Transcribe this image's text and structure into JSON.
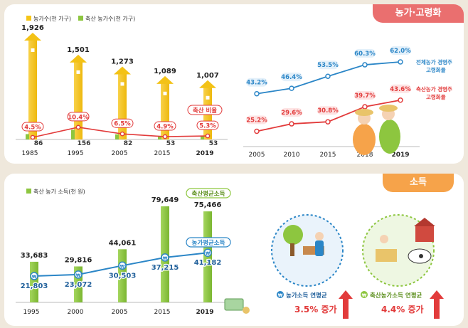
{
  "top_badge": "농가·고령화",
  "bottom_badge": "소득",
  "colors": {
    "farm_households": "#f5c518",
    "livestock_households": "#8dc63f",
    "ratio_red": "#e23b3b",
    "aging_blue": "#2b86c7",
    "aging_red": "#e23b3b",
    "income_green": "#8dc63f",
    "income_blue": "#2b86c7"
  },
  "chart_data": [
    {
      "type": "bar",
      "legend": [
        "농가수(천 가구)",
        "축산 농가수(천 가구)"
      ],
      "categories": [
        "1985",
        "1995",
        "2005",
        "2015",
        "2019"
      ],
      "series": [
        {
          "name": "농가수(천 가구)",
          "values": [
            1926,
            1501,
            1273,
            1089,
            1007
          ],
          "labels": [
            "1,926",
            "1,501",
            "1,273",
            "1,089",
            "1,007"
          ]
        },
        {
          "name": "축산 농가수(천 가구)",
          "values": [
            86,
            156,
            82,
            53,
            53
          ],
          "labels": [
            "86",
            "156",
            "82",
            "53",
            "53"
          ]
        }
      ],
      "ratio_series": {
        "name": "축산 비율",
        "values": [
          4.5,
          10.4,
          6.5,
          4.9,
          5.3
        ],
        "labels": [
          "4.5%",
          "10.4%",
          "6.5%",
          "4.9%",
          "5.3%"
        ]
      }
    },
    {
      "type": "line",
      "x": [
        "2005",
        "2010",
        "2015",
        "2018",
        "2019"
      ],
      "series": [
        {
          "name": "전체농가 경영주 고령화율",
          "values": [
            43.2,
            46.4,
            53.5,
            60.3,
            62.0
          ],
          "labels": [
            "43.2%",
            "46.4%",
            "53.5%",
            "60.3%",
            "62.0%"
          ]
        },
        {
          "name": "축산농가 경영주 고령화율",
          "values": [
            25.2,
            29.6,
            30.8,
            39.7,
            43.6
          ],
          "labels": [
            "25.2%",
            "29.6%",
            "30.8%",
            "39.7%",
            "43.6%"
          ]
        }
      ]
    },
    {
      "type": "bar",
      "legend": [
        "축산 농가 소득(천 원)"
      ],
      "categories": [
        "1995",
        "2000",
        "2005",
        "2015",
        "2019"
      ],
      "series": [
        {
          "name": "축산평균소득",
          "values": [
            33683,
            29816,
            44061,
            79649,
            75466
          ],
          "labels": [
            "33,683",
            "29,816",
            "44,061",
            "79,649",
            "75,466"
          ]
        },
        {
          "name": "농가평균소득",
          "values": [
            21803,
            23072,
            30503,
            37215,
            41182
          ],
          "labels": [
            "21,803",
            "23,072",
            "30,503",
            "37,215",
            "41,182"
          ]
        }
      ]
    }
  ],
  "labels": {
    "ratio_callout": "축산 비율",
    "aging_all_1": "전체농가 경영주",
    "aging_all_2": "고령화율",
    "aging_live_1": "축산농가 경영주",
    "aging_live_2": "고령화율",
    "income_livestock_tag": "축산평균소득",
    "income_farm_tag": "농가평균소득",
    "farm_growth_title": "농가소득 연평균",
    "farm_growth_value": "3.5% 증가",
    "live_growth_title": "축산농가소득 연평균",
    "live_growth_value": "4.4% 증가",
    "won": "₩"
  }
}
